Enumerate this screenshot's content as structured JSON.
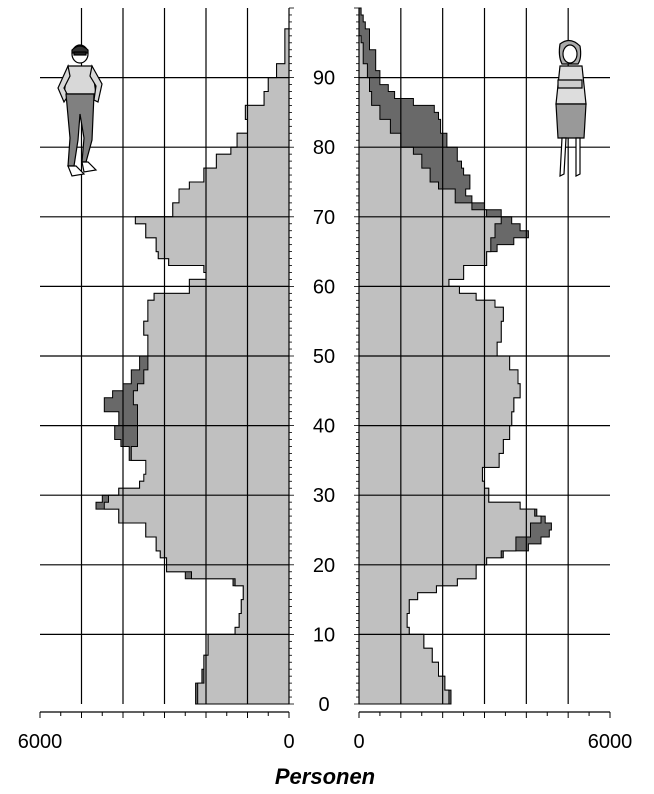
{
  "chart_data": {
    "type": "area",
    "xlabel": "Personen",
    "x_tick_labels_male": [
      "6000",
      "0"
    ],
    "x_tick_labels_female": [
      "0",
      "6000"
    ],
    "xlim": [
      0,
      6000
    ],
    "ylim": [
      0,
      100
    ],
    "y_tick_labels": [
      "0",
      "10",
      "20",
      "30",
      "40",
      "50",
      "60",
      "70",
      "80",
      "90"
    ],
    "grid": true,
    "colors": {
      "light": "#c0c0c0",
      "dark": "#696969",
      "grid": "#000000"
    },
    "icons": {
      "male": "man-figure-icon",
      "female": "woman-figure-icon"
    },
    "series": [
      {
        "side": "male",
        "light": [
          [
            0,
            2200
          ],
          [
            3,
            2050
          ],
          [
            5,
            2050
          ],
          [
            7,
            1950
          ],
          [
            10,
            1300
          ],
          [
            11,
            1200
          ],
          [
            13,
            1150
          ],
          [
            15,
            1100
          ],
          [
            17,
            1300
          ],
          [
            18,
            2350
          ],
          [
            19,
            2950
          ],
          [
            21,
            3100
          ],
          [
            22,
            3200
          ],
          [
            24,
            3450
          ],
          [
            26,
            4100
          ],
          [
            28,
            4450
          ],
          [
            29,
            4350
          ],
          [
            30,
            4100
          ],
          [
            31,
            3600
          ],
          [
            32,
            3500
          ],
          [
            33,
            3450
          ],
          [
            35,
            3800
          ],
          [
            37,
            3650
          ],
          [
            40,
            3650
          ],
          [
            43,
            3750
          ],
          [
            45,
            3650
          ],
          [
            46,
            3500
          ],
          [
            48,
            3400
          ],
          [
            50,
            3400
          ],
          [
            53,
            3500
          ],
          [
            55,
            3400
          ],
          [
            58,
            3250
          ],
          [
            59,
            2400
          ],
          [
            61,
            2000
          ],
          [
            62,
            2050
          ],
          [
            63,
            2900
          ],
          [
            64,
            3150
          ],
          [
            65,
            3200
          ],
          [
            67,
            3450
          ],
          [
            69,
            3700
          ],
          [
            70,
            2800
          ],
          [
            72,
            2650
          ],
          [
            74,
            2400
          ],
          [
            75,
            2050
          ],
          [
            77,
            1750
          ],
          [
            79,
            1400
          ],
          [
            80,
            1250
          ],
          [
            82,
            1000
          ],
          [
            84,
            1050
          ],
          [
            86,
            600
          ],
          [
            88,
            500
          ],
          [
            90,
            300
          ],
          [
            92,
            100
          ],
          [
            97,
            0
          ]
        ],
        "dark": [
          [
            0,
            2250
          ],
          [
            3,
            2100
          ],
          [
            5,
            2050
          ],
          [
            7,
            1950
          ],
          [
            10,
            1300
          ],
          [
            11,
            1200
          ],
          [
            13,
            1150
          ],
          [
            15,
            1100
          ],
          [
            17,
            1350
          ],
          [
            18,
            2500
          ],
          [
            19,
            2950
          ],
          [
            21,
            3100
          ],
          [
            22,
            3200
          ],
          [
            24,
            3450
          ],
          [
            26,
            4100
          ],
          [
            28,
            4650
          ],
          [
            29,
            4500
          ],
          [
            30,
            4100
          ],
          [
            31,
            3600
          ],
          [
            32,
            3250
          ],
          [
            34,
            3150
          ],
          [
            35,
            3850
          ],
          [
            37,
            4050
          ],
          [
            38,
            4200
          ],
          [
            40,
            4100
          ],
          [
            42,
            4450
          ],
          [
            44,
            4250
          ],
          [
            45,
            4000
          ],
          [
            46,
            3800
          ],
          [
            48,
            3600
          ],
          [
            50,
            3400
          ],
          [
            53,
            3500
          ],
          [
            55,
            3400
          ],
          [
            58,
            3250
          ],
          [
            59,
            2400
          ],
          [
            61,
            2000
          ],
          [
            62,
            2050
          ],
          [
            63,
            2900
          ],
          [
            64,
            3150
          ],
          [
            65,
            3200
          ],
          [
            67,
            3450
          ],
          [
            69,
            3700
          ],
          [
            70,
            2800
          ],
          [
            72,
            2650
          ],
          [
            74,
            2400
          ],
          [
            75,
            2050
          ],
          [
            77,
            1750
          ],
          [
            79,
            1400
          ],
          [
            80,
            1250
          ],
          [
            82,
            1000
          ],
          [
            84,
            1050
          ],
          [
            86,
            600
          ],
          [
            88,
            500
          ],
          [
            90,
            300
          ],
          [
            92,
            100
          ],
          [
            97,
            0
          ]
        ]
      },
      {
        "side": "female",
        "light": [
          [
            0,
            2150
          ],
          [
            2,
            2050
          ],
          [
            4,
            1900
          ],
          [
            6,
            1750
          ],
          [
            8,
            1550
          ],
          [
            10,
            1200
          ],
          [
            11,
            1150
          ],
          [
            13,
            1200
          ],
          [
            15,
            1400
          ],
          [
            16,
            1850
          ],
          [
            17,
            2350
          ],
          [
            18,
            2800
          ],
          [
            20,
            3050
          ],
          [
            21,
            3400
          ],
          [
            22,
            3750
          ],
          [
            24,
            4100
          ],
          [
            26,
            4350
          ],
          [
            27,
            4200
          ],
          [
            28,
            3850
          ],
          [
            29,
            3100
          ],
          [
            31,
            3000
          ],
          [
            32,
            2950
          ],
          [
            34,
            3350
          ],
          [
            36,
            3450
          ],
          [
            38,
            3600
          ],
          [
            40,
            3650
          ],
          [
            42,
            3700
          ],
          [
            44,
            3850
          ],
          [
            46,
            3800
          ],
          [
            48,
            3600
          ],
          [
            50,
            3300
          ],
          [
            52,
            3400
          ],
          [
            55,
            3450
          ],
          [
            57,
            3250
          ],
          [
            58,
            2800
          ],
          [
            59,
            2400
          ],
          [
            60,
            2150
          ],
          [
            61,
            2500
          ],
          [
            63,
            3050
          ],
          [
            65,
            3150
          ],
          [
            67,
            3250
          ],
          [
            69,
            3400
          ],
          [
            70,
            3050
          ],
          [
            71,
            2700
          ],
          [
            72,
            2300
          ],
          [
            74,
            1900
          ],
          [
            75,
            1700
          ],
          [
            77,
            1500
          ],
          [
            79,
            1300
          ],
          [
            80,
            1000
          ],
          [
            82,
            750
          ],
          [
            84,
            500
          ],
          [
            86,
            300
          ],
          [
            88,
            250
          ],
          [
            90,
            200
          ],
          [
            92,
            100
          ],
          [
            95,
            50
          ]
        ],
        "dark": [
          [
            0,
            2200
          ],
          [
            2,
            2050
          ],
          [
            4,
            1900
          ],
          [
            6,
            1750
          ],
          [
            8,
            1550
          ],
          [
            10,
            1200
          ],
          [
            11,
            1150
          ],
          [
            13,
            1200
          ],
          [
            15,
            1400
          ],
          [
            16,
            1850
          ],
          [
            17,
            2350
          ],
          [
            18,
            2800
          ],
          [
            20,
            3050
          ],
          [
            21,
            3450
          ],
          [
            22,
            4050
          ],
          [
            23,
            4350
          ],
          [
            24,
            4550
          ],
          [
            25,
            4600
          ],
          [
            26,
            4450
          ],
          [
            27,
            4250
          ],
          [
            28,
            3850
          ],
          [
            29,
            3100
          ],
          [
            31,
            3000
          ],
          [
            32,
            2950
          ],
          [
            34,
            3350
          ],
          [
            36,
            3450
          ],
          [
            38,
            3600
          ],
          [
            40,
            3650
          ],
          [
            42,
            3700
          ],
          [
            44,
            3850
          ],
          [
            46,
            3800
          ],
          [
            48,
            3600
          ],
          [
            50,
            3300
          ],
          [
            52,
            3400
          ],
          [
            55,
            3450
          ],
          [
            57,
            3250
          ],
          [
            58,
            2800
          ],
          [
            59,
            2400
          ],
          [
            60,
            2150
          ],
          [
            61,
            2500
          ],
          [
            63,
            3050
          ],
          [
            65,
            3300
          ],
          [
            66,
            3700
          ],
          [
            67,
            4050
          ],
          [
            68,
            3850
          ],
          [
            69,
            3650
          ],
          [
            70,
            3400
          ],
          [
            71,
            3000
          ],
          [
            72,
            2700
          ],
          [
            73,
            2550
          ],
          [
            74,
            2650
          ],
          [
            76,
            2500
          ],
          [
            77,
            2450
          ],
          [
            78,
            2350
          ],
          [
            80,
            2100
          ],
          [
            82,
            1950
          ],
          [
            84,
            1900
          ],
          [
            85,
            1800
          ],
          [
            86,
            1300
          ],
          [
            87,
            850
          ],
          [
            88,
            700
          ],
          [
            89,
            500
          ],
          [
            91,
            400
          ],
          [
            94,
            250
          ],
          [
            97,
            150
          ],
          [
            98,
            100
          ],
          [
            99,
            50
          ]
        ]
      }
    ]
  }
}
